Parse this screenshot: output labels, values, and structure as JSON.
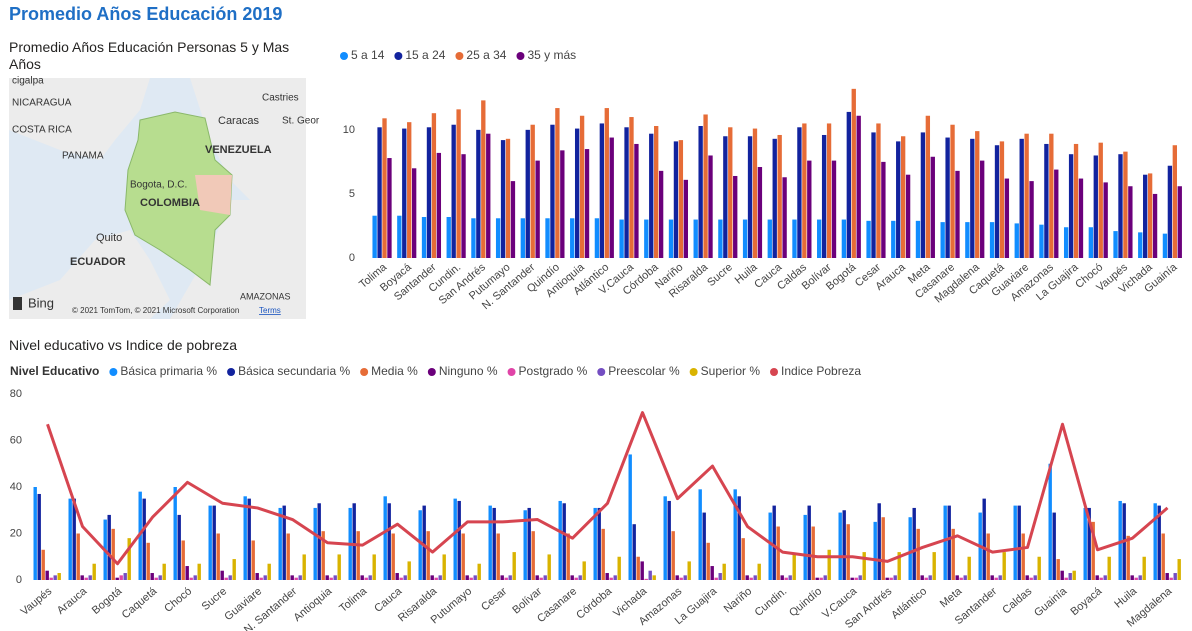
{
  "page_title": "Promedio Años Educación 2019",
  "map": {
    "title": "Promedio Años Educación Personas 5 y Mas Años",
    "labels": [
      "cigalpa",
      "NICARAGUA",
      "COSTA RICA",
      "PANAMA",
      "Caracas",
      "Castries",
      "St. Geor",
      "VENEZUELA",
      "Bogota, D.C.",
      "COLOMBIA",
      "Quito",
      "ECUADOR",
      "AMAZONAS"
    ],
    "brand": "Bing",
    "attribution": "© 2021 TomTom, © 2021 Microsoft Corporation",
    "terms": "Terms"
  },
  "chart_data": [
    {
      "type": "bar",
      "categories": [
        "Tolima",
        "Boyacá",
        "Santander",
        "Cundin.",
        "San Andrés",
        "Putumayo",
        "N. Santander",
        "Quindío",
        "Antioquia",
        "Atlántico",
        "V.Cauca",
        "Córdoba",
        "Nariño",
        "Risaralda",
        "Sucre",
        "Huila",
        "Cauca",
        "Caldas",
        "Bolívar",
        "Bogotá",
        "Cesar",
        "Arauca",
        "Meta",
        "Casanare",
        "Magdalena",
        "Caquetá",
        "Guaviare",
        "Amazonas",
        "La Guajira",
        "Chocó",
        "Vaupés",
        "Vichada",
        "Guainía"
      ],
      "series": [
        {
          "name": "5 a 14",
          "color": "#118DFF",
          "values": [
            3.3,
            3.3,
            3.2,
            3.2,
            3.1,
            3.1,
            3.1,
            3.1,
            3.1,
            3.1,
            3.0,
            3.0,
            3.0,
            3.0,
            3.0,
            3.0,
            3.0,
            3.0,
            3.0,
            3.0,
            2.9,
            2.9,
            2.9,
            2.8,
            2.8,
            2.8,
            2.7,
            2.6,
            2.4,
            2.4,
            2.1,
            2.0,
            1.9
          ]
        },
        {
          "name": "15 a 24",
          "color": "#12239E",
          "values": [
            10.2,
            10.1,
            10.2,
            10.4,
            10.0,
            9.2,
            10.0,
            10.4,
            10.1,
            10.5,
            10.2,
            9.7,
            9.1,
            10.3,
            9.5,
            9.5,
            9.3,
            10.2,
            9.6,
            11.4,
            9.8,
            9.1,
            9.8,
            9.4,
            9.3,
            8.8,
            9.3,
            8.9,
            8.1,
            8.0,
            8.1,
            6.5,
            7.2
          ]
        },
        {
          "name": "25 a 34",
          "color": "#E66C37",
          "values": [
            10.9,
            10.6,
            11.3,
            11.6,
            12.3,
            9.3,
            10.4,
            11.7,
            11.1,
            11.7,
            11.0,
            10.3,
            9.2,
            11.2,
            10.2,
            10.1,
            9.6,
            10.5,
            10.5,
            13.2,
            10.5,
            9.5,
            11.1,
            10.4,
            9.9,
            9.1,
            9.7,
            9.7,
            8.9,
            9.0,
            8.3,
            6.6,
            8.8
          ]
        },
        {
          "name": "35 y más",
          "color": "#6B007B",
          "values": [
            7.8,
            7.0,
            8.2,
            8.1,
            9.7,
            6.0,
            7.6,
            8.4,
            8.5,
            9.4,
            8.9,
            6.8,
            6.1,
            8.0,
            6.4,
            7.1,
            6.3,
            7.6,
            7.6,
            11.1,
            7.5,
            6.5,
            7.9,
            6.8,
            7.6,
            6.2,
            6.0,
            6.9,
            6.2,
            5.9,
            5.6,
            5.0,
            5.6
          ]
        }
      ],
      "ylim": [
        0,
        13.5
      ],
      "yticks": [
        0,
        5,
        10
      ],
      "grid": false
    },
    {
      "type": "combo",
      "title": "Nivel educativo vs Indice de pobreza",
      "legend_title": "Nivel Educativo",
      "categories": [
        "Vaupés",
        "Arauca",
        "Bogotá",
        "Caquetá",
        "Chocó",
        "Sucre",
        "Guaviare",
        "N. Santander",
        "Antioquia",
        "Tolima",
        "Cauca",
        "Risaralda",
        "Putumayo",
        "Cesar",
        "Bolívar",
        "Casanare",
        "Córdoba",
        "Vichada",
        "Amazonas",
        "La Guajira",
        "Nariño",
        "Cundin.",
        "Quindío",
        "V.Cauca",
        "San Andrés",
        "Atlántico",
        "Meta",
        "Santander",
        "Caldas",
        "Guainía",
        "Boyacá",
        "Huila",
        "Magdalena"
      ],
      "series": [
        {
          "name": "Básica primaria %",
          "color": "#118DFF",
          "values": [
            40,
            35,
            26,
            38,
            40,
            32,
            36,
            31,
            31,
            31,
            36,
            30,
            35,
            32,
            30,
            34,
            31,
            54,
            36,
            39,
            39,
            29,
            28,
            29,
            25,
            27,
            32,
            29,
            32,
            50,
            31,
            34,
            33
          ]
        },
        {
          "name": "Básica secundaria %",
          "color": "#12239E",
          "values": [
            37,
            35,
            28,
            35,
            28,
            32,
            35,
            32,
            33,
            33,
            33,
            32,
            34,
            31,
            31,
            33,
            31,
            24,
            34,
            29,
            36,
            32,
            32,
            30,
            33,
            31,
            32,
            35,
            32,
            29,
            31,
            33,
            32
          ]
        },
        {
          "name": "Media %",
          "color": "#E66C37",
          "values": [
            13,
            20,
            22,
            16,
            17,
            20,
            17,
            20,
            21,
            21,
            20,
            21,
            20,
            20,
            21,
            20,
            22,
            10,
            21,
            16,
            18,
            23,
            23,
            24,
            27,
            22,
            22,
            20,
            20,
            9,
            25,
            19,
            20
          ]
        },
        {
          "name": "Ninguno %",
          "color": "#6B007B",
          "values": [
            4,
            2,
            1,
            3,
            6,
            4,
            3,
            2,
            2,
            2,
            3,
            2,
            2,
            2,
            2,
            2,
            3,
            8,
            2,
            6,
            2,
            2,
            1,
            1,
            1,
            2,
            2,
            2,
            2,
            4,
            2,
            2,
            3
          ]
        },
        {
          "name": "Postgrado %",
          "color": "#E044A7",
          "values": [
            1,
            1,
            2,
            1,
            1,
            1,
            1,
            1,
            1,
            1,
            1,
            1,
            1,
            1,
            1,
            1,
            1,
            0.5,
            1,
            1,
            1,
            1,
            1,
            1,
            1,
            1,
            1,
            1,
            1,
            1,
            1,
            1,
            1
          ]
        },
        {
          "name": "Preescolar %",
          "color": "#744EC2",
          "values": [
            2,
            2,
            3,
            2,
            2,
            2,
            2,
            2,
            2,
            2,
            2,
            2,
            2,
            2,
            2,
            2,
            2,
            4,
            2,
            3,
            2,
            2,
            2,
            2,
            2,
            2,
            2,
            2,
            2,
            3,
            2,
            2,
            3
          ]
        },
        {
          "name": "Superior %",
          "color": "#D9B300",
          "values": [
            3,
            7,
            18,
            7,
            7,
            9,
            7,
            11,
            11,
            11,
            8,
            11,
            7,
            12,
            11,
            8,
            10,
            2,
            8,
            7,
            7,
            11,
            13,
            12,
            12,
            12,
            10,
            12,
            10,
            4,
            10,
            10,
            9
          ]
        },
        {
          "name": "Indice Pobreza",
          "color": "#D64550",
          "kind": "line",
          "values": [
            67,
            23,
            7,
            27,
            42,
            33,
            31,
            26,
            16,
            15,
            24,
            12,
            25,
            25,
            26,
            18,
            33,
            72,
            35,
            49,
            23,
            12,
            10,
            10,
            8,
            14,
            19,
            12,
            14,
            67,
            13,
            18,
            31
          ]
        }
      ],
      "ylim": [
        0,
        80
      ],
      "yticks": [
        0,
        20,
        40,
        60,
        80
      ],
      "grid": false
    }
  ]
}
